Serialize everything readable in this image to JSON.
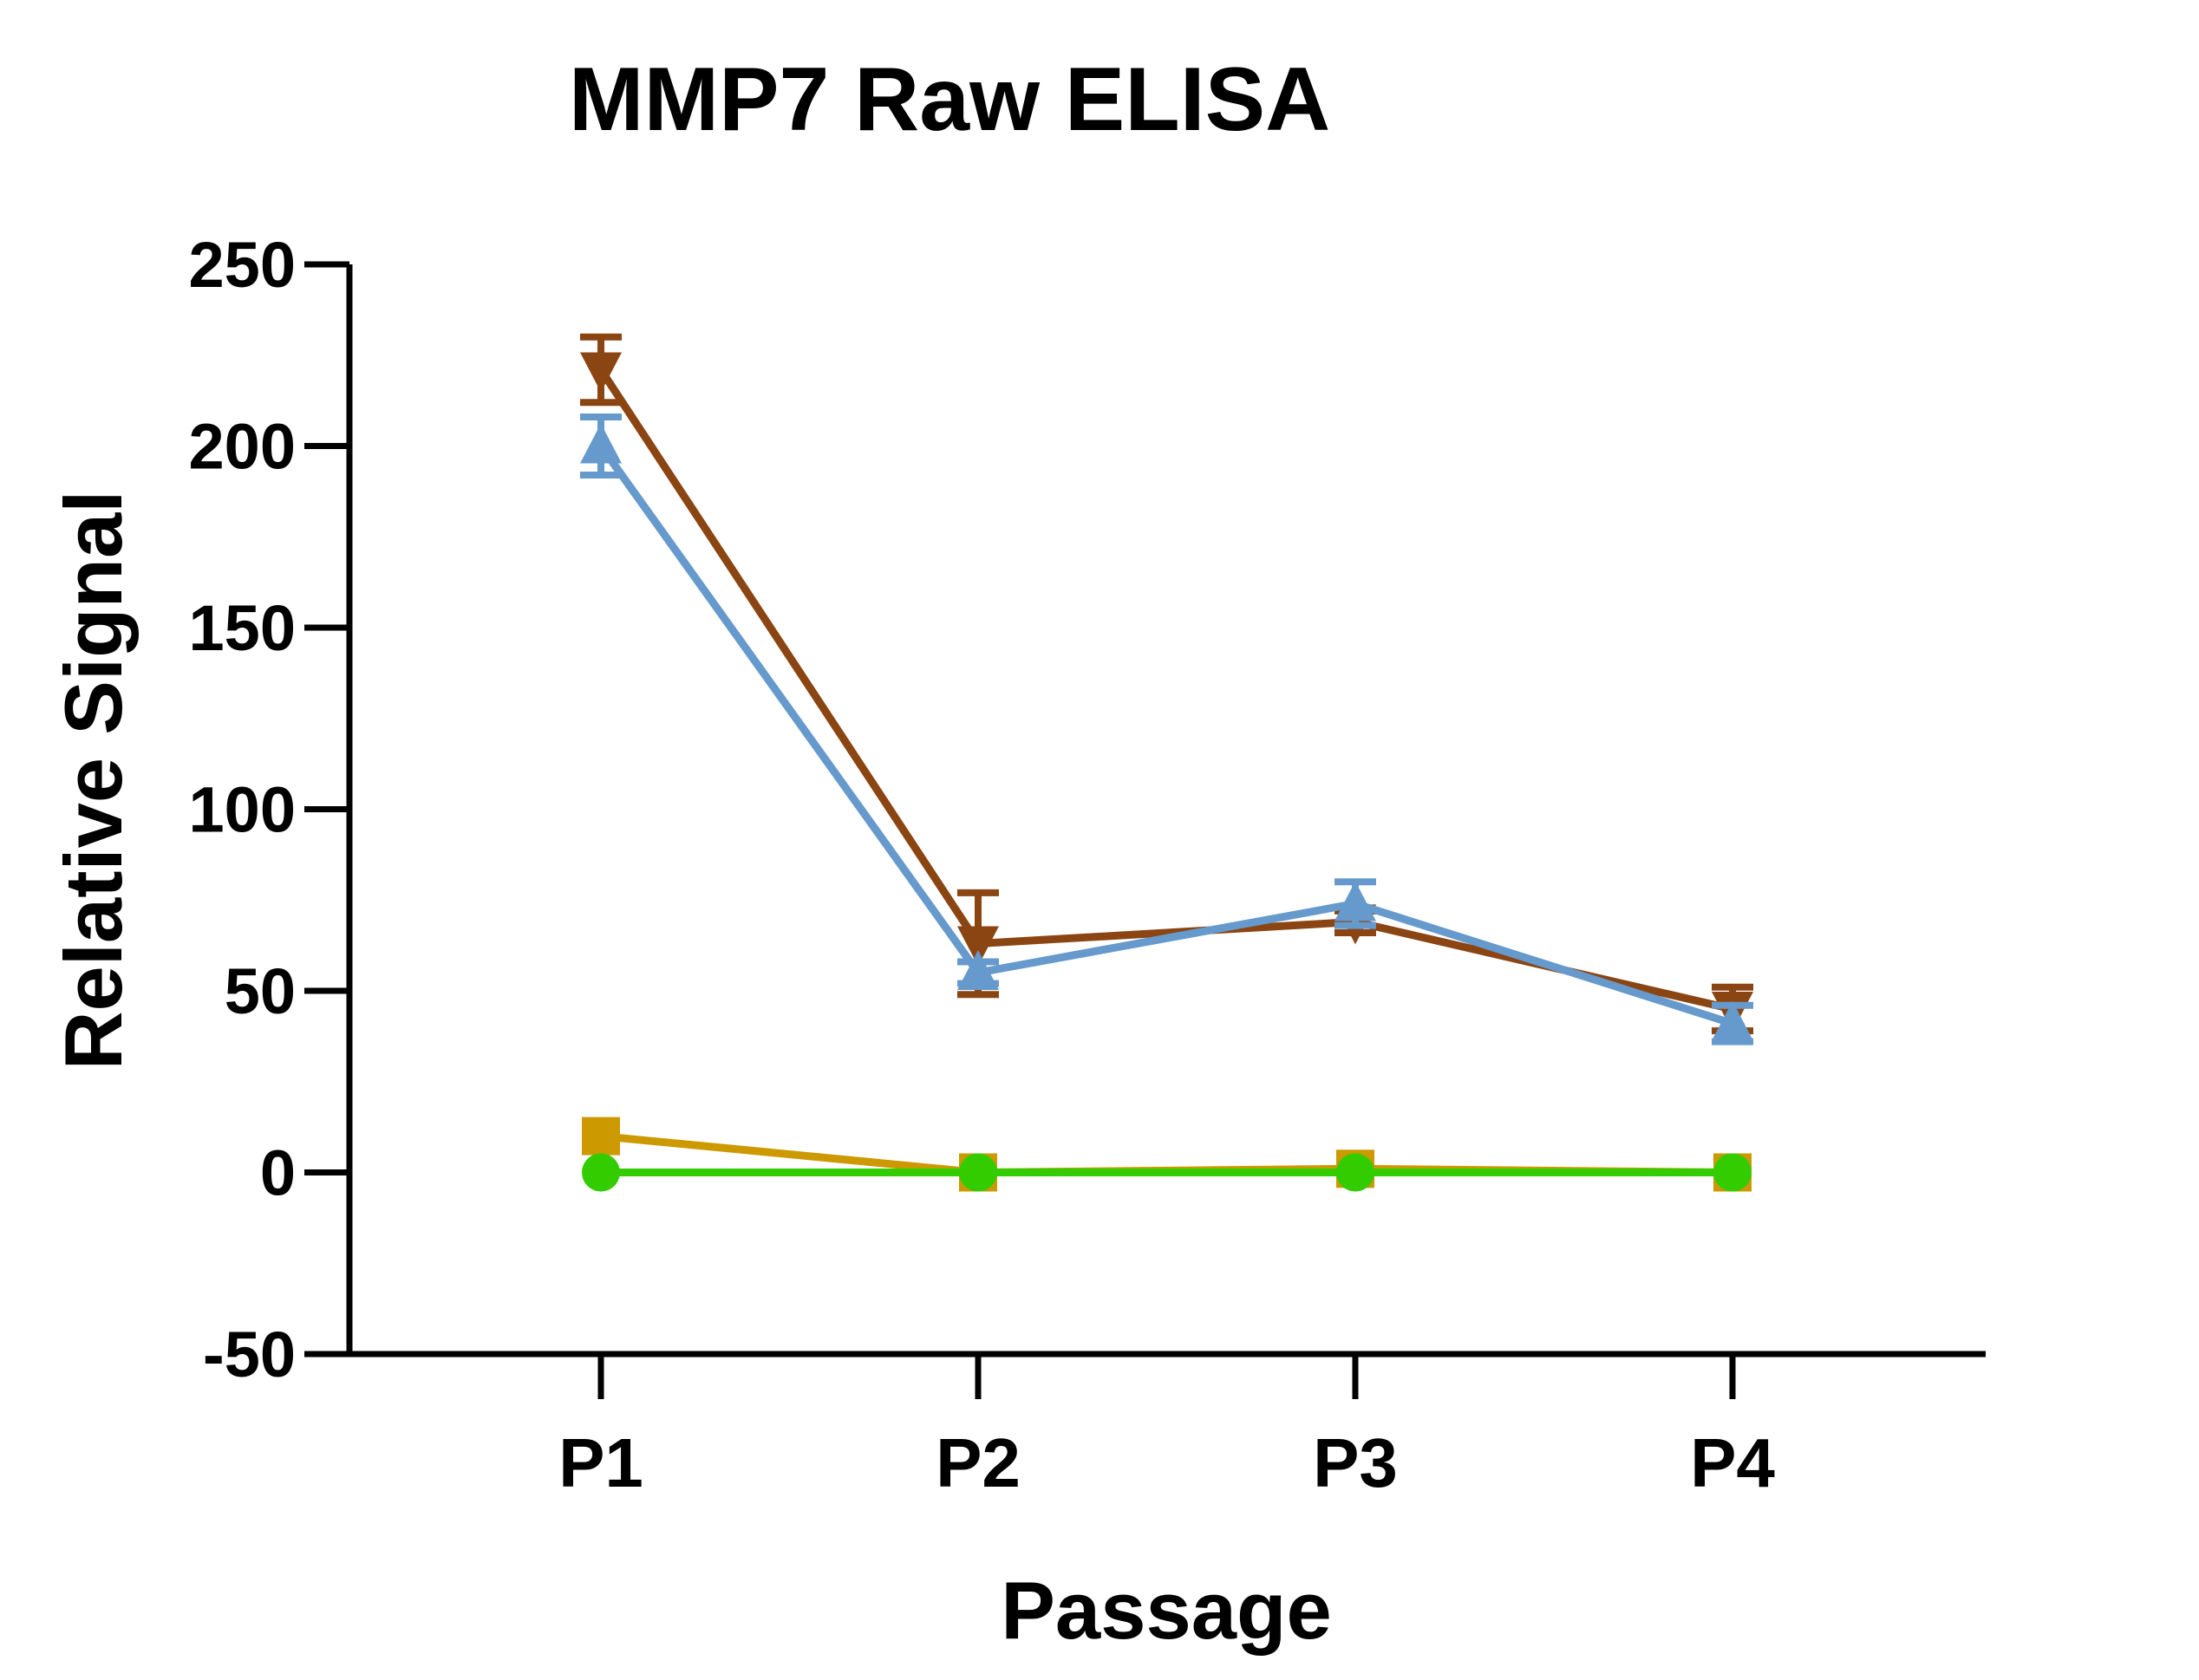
{
  "chart_data": {
    "type": "line",
    "title": "MMP7 Raw ELISA",
    "xlabel": "Passage",
    "ylabel": "Relative Signal",
    "categories": [
      "P1",
      "P2",
      "P3",
      "P4"
    ],
    "ylim": [
      -50,
      250
    ],
    "yticks": [
      -50,
      0,
      50,
      100,
      150,
      200,
      250
    ],
    "ytick_labels": [
      "-50",
      "0",
      "50",
      "100",
      "150",
      "200",
      "250"
    ],
    "grid": false,
    "legend": "none",
    "series": [
      {
        "color": "#8B4513",
        "marker": "triangle-down",
        "values": [
          221,
          63,
          69,
          45
        ],
        "error": [
          9,
          14,
          3,
          6
        ]
      },
      {
        "color": "#6699CC",
        "marker": "triangle-up",
        "values": [
          200,
          55,
          74,
          41
        ],
        "error": [
          8,
          3,
          6,
          5
        ]
      },
      {
        "color": "#CC9900",
        "marker": "square",
        "values": [
          10,
          0,
          1,
          0
        ],
        "error": [
          0,
          0,
          0,
          0
        ]
      },
      {
        "color": "#33CC00",
        "marker": "circle",
        "values": [
          0,
          0,
          0,
          0
        ],
        "error": [
          0,
          0,
          0,
          0
        ]
      }
    ]
  }
}
